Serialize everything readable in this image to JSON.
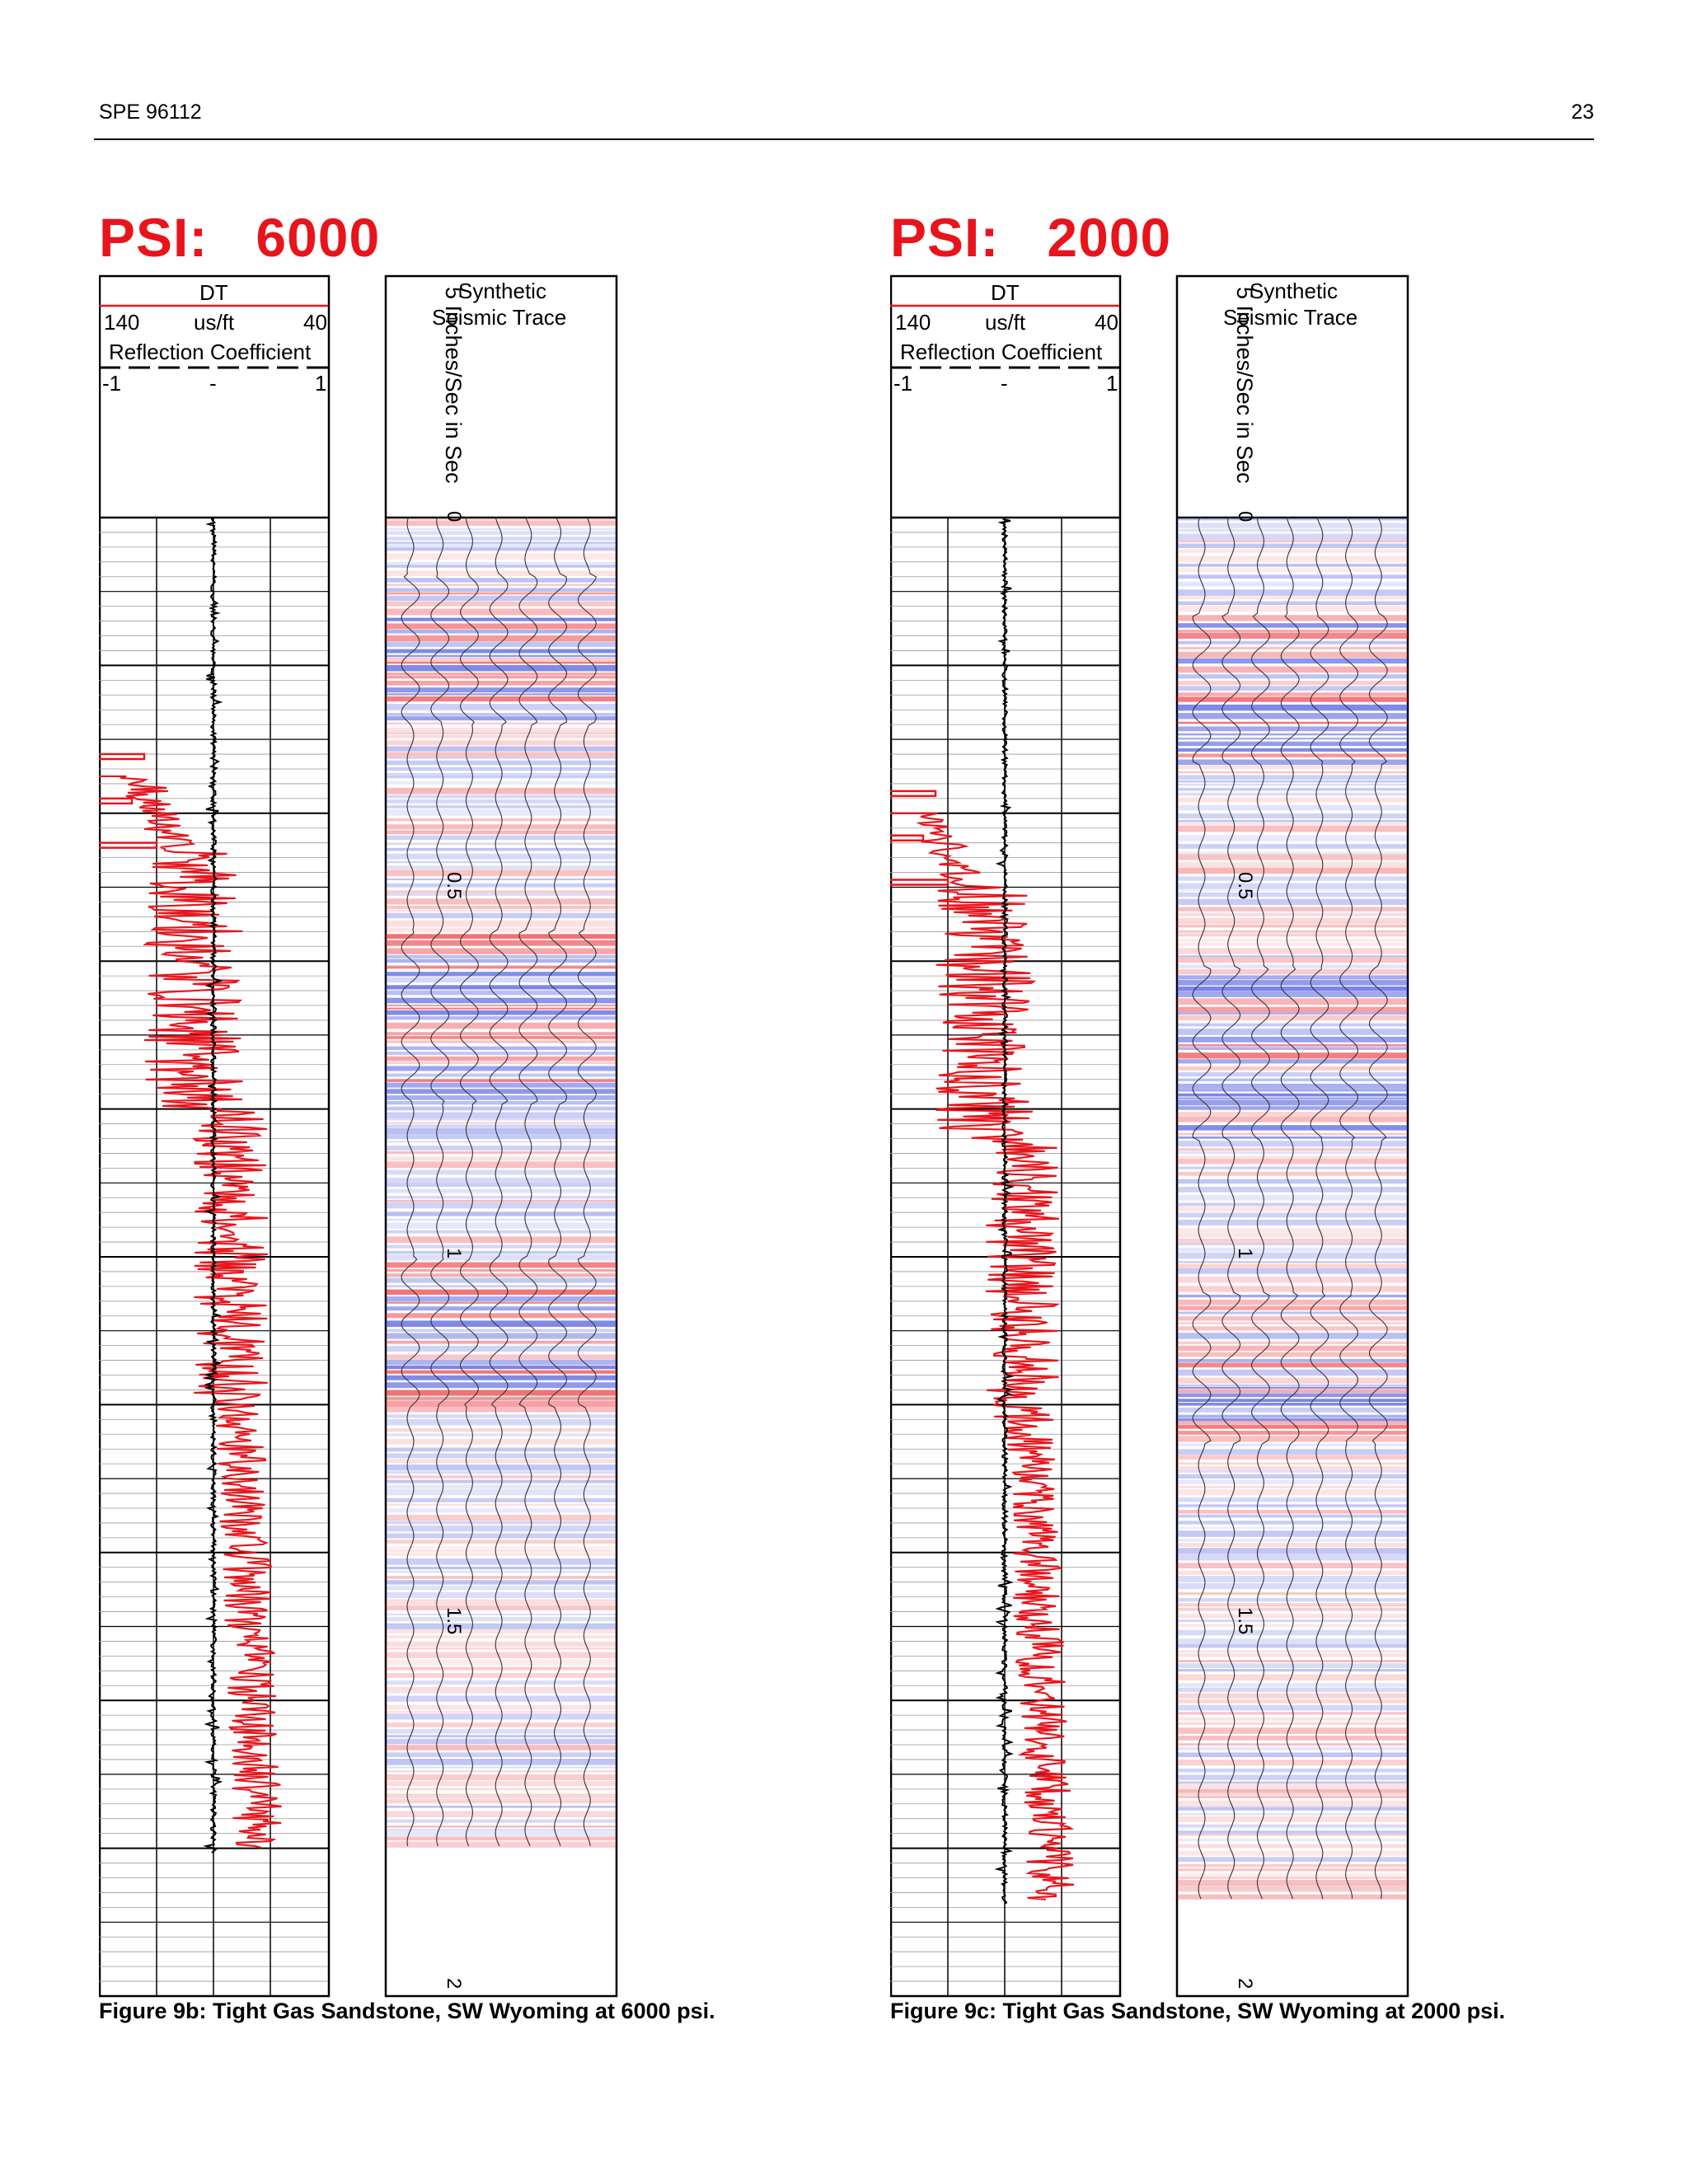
{
  "header": {
    "left": "SPE 96112",
    "right": "23"
  },
  "panels": [
    {
      "title": "PSI:   6000",
      "caption": "Figure 9b: Tight Gas Sandstone, SW Wyoming at 6000 psi.",
      "track1": {
        "curve": "DT",
        "left": "140",
        "units": "us/ft",
        "right": "40",
        "curve2": "Reflection Coefficient",
        "left2": "-1",
        "mid2": "-",
        "right2": "1"
      },
      "depth_label": "5 Inches/Sec  in Sec",
      "ticks": [
        "0",
        "0.5",
        "1",
        "1.5",
        "2"
      ],
      "seismic": {
        "line1": "Synthetic",
        "line2": "Seismic Trace"
      }
    },
    {
      "title": "PSI:   2000",
      "caption": "Figure 9c: Tight Gas Sandstone, SW Wyoming at 2000 psi.",
      "track1": {
        "curve": "DT",
        "left": "140",
        "units": "us/ft",
        "right": "40",
        "curve2": "Reflection Coefficient",
        "left2": "-1",
        "mid2": "-",
        "right2": "1"
      },
      "depth_label": "5 Inches/Sec  in Sec",
      "ticks": [
        "0",
        "0.5",
        "1",
        "1.5",
        "2"
      ],
      "seismic": {
        "line1": "Synthetic",
        "line2": "Seismic Trace"
      }
    }
  ],
  "colors": {
    "title": "#e8141c",
    "dt_curve": "#e8141c",
    "rc_curve": "#000000",
    "positive": "#e8141c",
    "negative": "#1f2fd6"
  }
}
